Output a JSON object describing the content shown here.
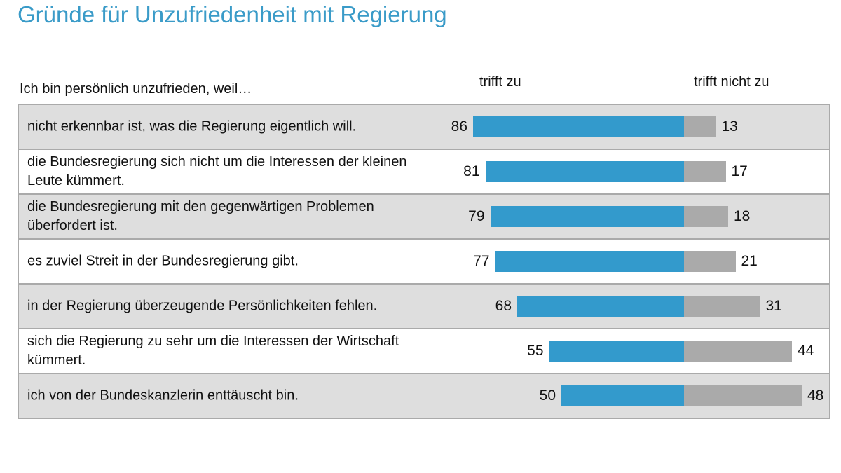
{
  "chart_data": {
    "type": "bar",
    "title": "Gründe für Unzufriedenheit mit Regierung",
    "row_header": "Ich bin persönlich unzufrieden, weil…",
    "colors": {
      "title": "#3a9bc8",
      "trifft_zu": "#339acc",
      "trifft_nicht_zu": "#aaaaaa",
      "row_alt": "#dedede"
    },
    "categories": [
      "nicht erkennbar ist, was die Regierung eigentlich will.",
      "die Bundesregierung sich nicht um die Interessen der kleinen Leute kümmert.",
      "die Bundesregierung mit den gegenwärtigen Problemen überfordert ist.",
      "es zuviel Streit in der Bundesregierung gibt.",
      "in der Regierung überzeugende Persönlichkeiten fehlen.",
      "sich die Regierung zu sehr um die Interessen der Wirtschaft kümmert.",
      "ich von der Bundeskanzlerin enttäuscht bin."
    ],
    "series": [
      {
        "name": "trifft zu",
        "values": [
          86,
          81,
          79,
          77,
          68,
          55,
          50
        ]
      },
      {
        "name": "trifft nicht zu",
        "values": [
          13,
          17,
          18,
          21,
          31,
          44,
          48
        ]
      }
    ]
  }
}
